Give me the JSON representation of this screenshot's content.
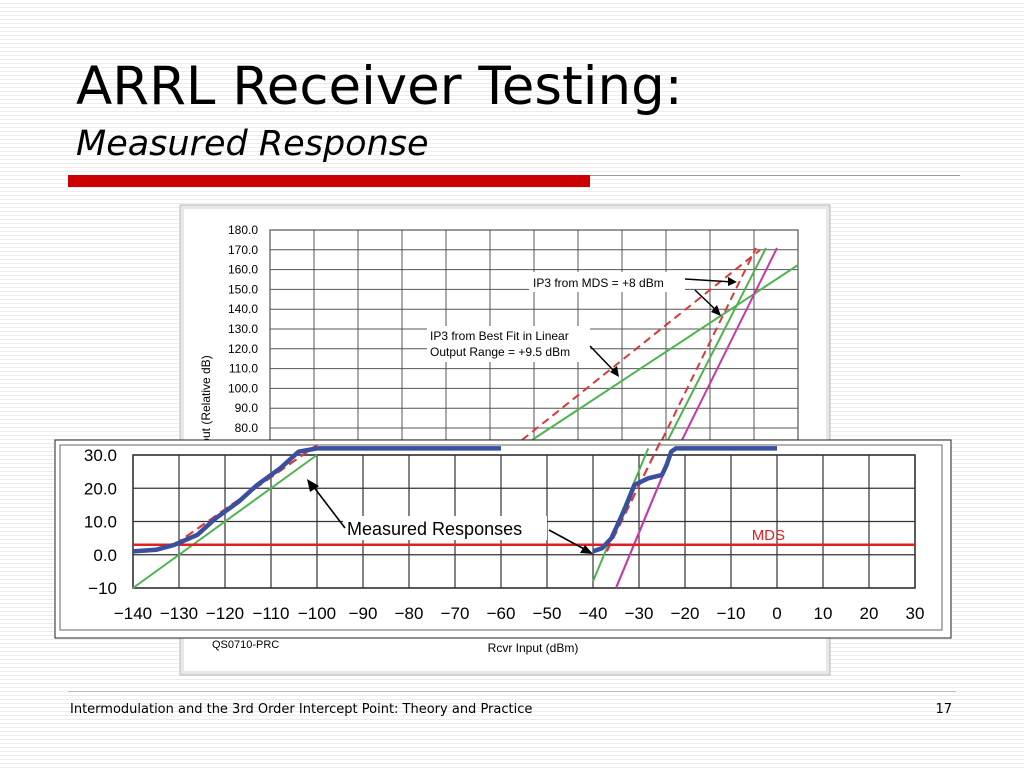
{
  "slide": {
    "title": "ARRL Receiver Testing:",
    "subtitle": "Measured Response",
    "footer": "Intermodulation and the 3rd Order Intercept Point: Theory and Practice",
    "page_number": "17",
    "accent_color": "#cc0000"
  },
  "chart_data": [
    {
      "type": "line",
      "panel": "upper-background",
      "y_ticks": [
        "180.0",
        "170.0",
        "160.0",
        "150.0",
        "140.0",
        "130.0",
        "120.0",
        "110.0",
        "100.0",
        "90.0",
        "80.0"
      ],
      "ylabel": "out (Relative dB)",
      "xlabel": "Rcvr Input (dBm)",
      "figure_code": "QS0710-PRC",
      "annotations": [
        {
          "text": "IP3 from MDS = +8 dBm"
        },
        {
          "lines": [
            "IP3 from Best Fit in Linear",
            "Output Range = +9.5 dBm"
          ]
        }
      ]
    },
    {
      "type": "line",
      "panel": "lower-overlay",
      "x_ticks": [
        "−140",
        "−130",
        "−120",
        "−110",
        "−100",
        "−90",
        "−80",
        "−70",
        "−60",
        "−50",
        "−40",
        "−30",
        "−20",
        "−10",
        "0",
        "10",
        "20",
        "30"
      ],
      "x_tick_values": [
        -140,
        -130,
        -120,
        -110,
        -100,
        -90,
        -80,
        -70,
        -60,
        -50,
        -40,
        -30,
        -20,
        -10,
        0,
        10,
        20,
        30
      ],
      "y_ticks": [
        "30.0",
        "20.0",
        "10.0",
        "0.0",
        "−10"
      ],
      "y_tick_values": [
        30,
        20,
        10,
        0,
        -10
      ],
      "xlim": [
        -140,
        30
      ],
      "ylim": [
        -10,
        30
      ],
      "grid": true,
      "mds_level": 3,
      "mds_label": "MDS",
      "annotation": "Measured Responses",
      "colors": {
        "measured": "#3a4fa0",
        "fit": "#4fb34f",
        "dashed": "#d83a3a",
        "third_order": "#c43aa8",
        "mds": "#e02020"
      },
      "series": [
        {
          "role": "fundamental-measured",
          "x": [
            -140,
            -135,
            -131,
            -126,
            -122,
            -117,
            -113,
            -108,
            -104,
            -100,
            -60
          ],
          "y": [
            1,
            1.5,
            3,
            6,
            11,
            16,
            21,
            26,
            31,
            32,
            32
          ]
        },
        {
          "role": "fundamental-dashed",
          "x": [
            -131,
            -100
          ],
          "y": [
            3,
            33
          ]
        },
        {
          "role": "fundamental-fit",
          "x": [
            -140,
            -100
          ],
          "y": [
            -10,
            30
          ]
        },
        {
          "role": "imd-measured",
          "x": [
            -40,
            -38,
            -36,
            -33,
            -31,
            -28,
            -25,
            -24,
            -23,
            -22,
            0
          ],
          "y": [
            1,
            2,
            5,
            14,
            21,
            23,
            24,
            27,
            31,
            32,
            32
          ]
        },
        {
          "role": "imd-dashed",
          "x": [
            -37,
            -25
          ],
          "y": [
            1,
            35
          ]
        },
        {
          "role": "imd-fit",
          "x": [
            -40,
            -28
          ],
          "y": [
            -8,
            32
          ]
        },
        {
          "role": "imd-third-order",
          "x": [
            -35,
            -23
          ],
          "y": [
            -10,
            30
          ]
        }
      ]
    }
  ]
}
